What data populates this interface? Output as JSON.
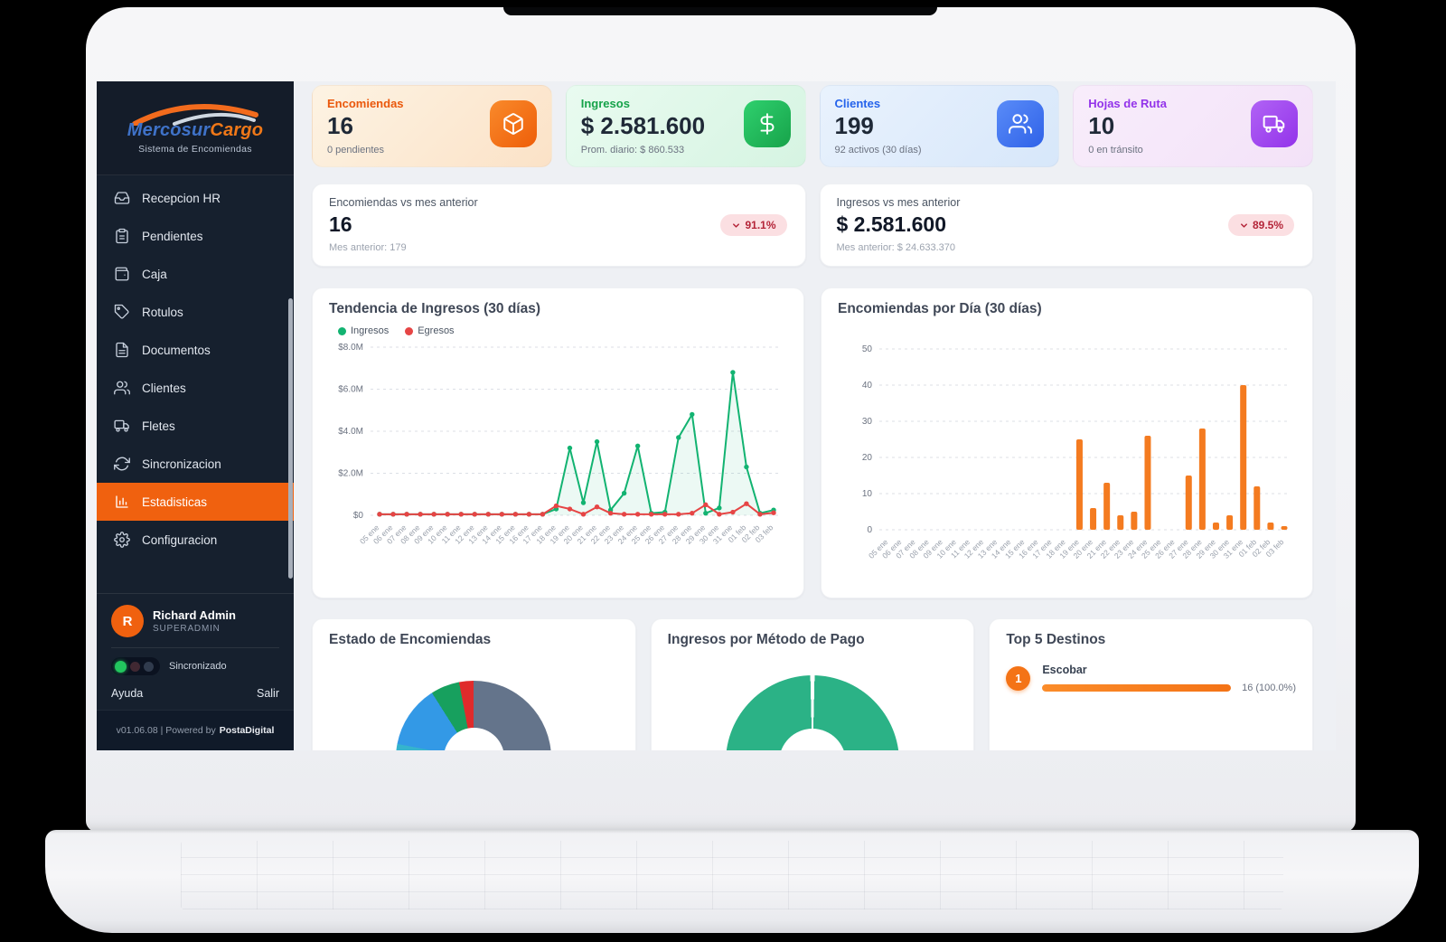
{
  "sidebar": {
    "logo": {
      "brand_primary": "Mercosur",
      "brand_secondary": "Cargo",
      "subtitle": "Sistema de Encomiendas"
    },
    "items": [
      {
        "label": "Recepcion HR",
        "icon": "inbox-icon",
        "active": false
      },
      {
        "label": "Pendientes",
        "icon": "clipboard-icon",
        "active": false
      },
      {
        "label": "Caja",
        "icon": "wallet-icon",
        "active": false
      },
      {
        "label": "Rotulos",
        "icon": "tag-icon",
        "active": false
      },
      {
        "label": "Documentos",
        "icon": "document-icon",
        "active": false
      },
      {
        "label": "Clientes",
        "icon": "users-icon",
        "active": false
      },
      {
        "label": "Fletes",
        "icon": "truck-icon",
        "active": false
      },
      {
        "label": "Sincronizacion",
        "icon": "sync-icon",
        "active": false
      },
      {
        "label": "Estadisticas",
        "icon": "chart-icon",
        "active": true
      },
      {
        "label": "Configuracion",
        "icon": "gear-icon",
        "active": false
      }
    ],
    "user": {
      "initial": "R",
      "name": "Richard Admin",
      "role": "SUPERADMIN"
    },
    "sync_label": "Sincronizado",
    "help_label": "Ayuda",
    "logout_label": "Salir",
    "version_prefix": "v01.06.08 | Powered by",
    "version_brand": "PostaDigital",
    "active_color": "#f0610f"
  },
  "stats": [
    {
      "title": "Encomiendas",
      "value": "16",
      "subtitle": "0 pendientes",
      "accent": "#ea580c",
      "icon": "package-icon"
    },
    {
      "title": "Ingresos",
      "value": "$ 2.581.600",
      "subtitle": "Prom. diario: $ 860.533",
      "accent": "#16a34a",
      "icon": "dollar-icon"
    },
    {
      "title": "Clientes",
      "value": "199",
      "subtitle": "92 activos (30 días)",
      "accent": "#2563eb",
      "icon": "users-icon"
    },
    {
      "title": "Hojas de Ruta",
      "value": "10",
      "subtitle": "0 en tránsito",
      "accent": "#9333ea",
      "icon": "truck-icon"
    }
  ],
  "comparisons": [
    {
      "title": "Encomiendas vs mes anterior",
      "value": "16",
      "previous": "Mes anterior: 179",
      "change": "91.1%",
      "direction": "down",
      "badge_bg": "#fbdfe2",
      "badge_color": "#b42438"
    },
    {
      "title": "Ingresos vs mes anterior",
      "value": "$ 2.581.600",
      "previous": "Mes anterior: $ 24.633.370",
      "change": "89.5%",
      "direction": "down",
      "badge_bg": "#fbdfe2",
      "badge_color": "#b42438"
    }
  ],
  "chart_data": [
    {
      "type": "line",
      "title": "Tendencia de Ingresos (30 días)",
      "x": [
        "05 ene",
        "06 ene",
        "07 ene",
        "08 ene",
        "09 ene",
        "10 ene",
        "11 ene",
        "12 ene",
        "13 ene",
        "14 ene",
        "15 ene",
        "16 ene",
        "17 ene",
        "18 ene",
        "19 ene",
        "20 ene",
        "21 ene",
        "22 ene",
        "23 ene",
        "24 ene",
        "25 ene",
        "26 ene",
        "27 ene",
        "28 ene",
        "29 ene",
        "30 ene",
        "31 ene",
        "01 feb",
        "02 feb",
        "03 feb"
      ],
      "series": [
        {
          "name": "Ingresos",
          "color": "#12b371",
          "values": [
            0.05,
            0.05,
            0.05,
            0.05,
            0.05,
            0.05,
            0.05,
            0.05,
            0.05,
            0.05,
            0.05,
            0.05,
            0.05,
            0.3,
            3.2,
            0.6,
            3.5,
            0.25,
            1.05,
            3.3,
            0.1,
            0.15,
            3.7,
            4.8,
            0.1,
            0.35,
            6.8,
            2.3,
            0.1,
            0.25
          ]
        },
        {
          "name": "Egresos",
          "color": "#e64545",
          "values": [
            0.05,
            0.05,
            0.05,
            0.05,
            0.05,
            0.05,
            0.05,
            0.05,
            0.05,
            0.05,
            0.05,
            0.05,
            0.05,
            0.45,
            0.3,
            0.05,
            0.4,
            0.1,
            0.05,
            0.05,
            0.05,
            0.05,
            0.05,
            0.1,
            0.5,
            0.05,
            0.15,
            0.55,
            0.05,
            0.12
          ]
        }
      ],
      "unit": "millions",
      "ylim": [
        0,
        8
      ],
      "ytick_values": [
        0,
        2,
        4,
        6,
        8
      ],
      "yticks": [
        "$0",
        "$2.0M",
        "$4.0M",
        "$6.0M",
        "$8.0M"
      ],
      "grid": true,
      "legend_position": "top-left"
    },
    {
      "type": "bar",
      "title": "Encomiendas por Día (30 días)",
      "categories": [
        "05 ene",
        "06 ene",
        "07 ene",
        "08 ene",
        "09 ene",
        "10 ene",
        "11 ene",
        "12 ene",
        "13 ene",
        "14 ene",
        "15 ene",
        "16 ene",
        "17 ene",
        "18 ene",
        "19 ene",
        "20 ene",
        "21 ene",
        "22 ene",
        "23 ene",
        "24 ene",
        "25 ene",
        "26 ene",
        "27 ene",
        "28 ene",
        "29 ene",
        "30 ene",
        "31 ene",
        "01 feb",
        "02 feb",
        "03 feb"
      ],
      "values": [
        0,
        0,
        0,
        0,
        0,
        0,
        0,
        0,
        0,
        0,
        0,
        0,
        0,
        0,
        25,
        6,
        13,
        4,
        5,
        26,
        0,
        0,
        15,
        28,
        2,
        4,
        40,
        12,
        2,
        1
      ],
      "color": "#f47b20",
      "ylim": [
        0,
        50
      ],
      "ytick_values": [
        0,
        10,
        20,
        30,
        40,
        50
      ],
      "grid": true
    },
    {
      "type": "donut",
      "title": "Estado de Encomiendas",
      "segments": [
        {
          "color": "#64748b",
          "pct": 52
        },
        {
          "color": "#35b4cd",
          "pct": 26
        },
        {
          "color": "#3399e6",
          "pct": 13
        },
        {
          "color": "#17a05e",
          "pct": 6
        },
        {
          "color": "#e02b2b",
          "pct": 3
        }
      ]
    },
    {
      "type": "donut",
      "title": "Ingresos por Método de Pago",
      "segments": [
        {
          "color": "#ffffff",
          "pct": 0.4
        },
        {
          "color": "#2bb286",
          "pct": 99.2
        },
        {
          "color": "#ffffff",
          "pct": 0.4
        }
      ]
    },
    {
      "type": "ranked-list",
      "title": "Top 5 Destinos",
      "items": [
        {
          "rank": "1",
          "label": "Escobar",
          "value": "16 (100.0%)",
          "pct": 100,
          "color": "#f47316"
        }
      ]
    }
  ]
}
